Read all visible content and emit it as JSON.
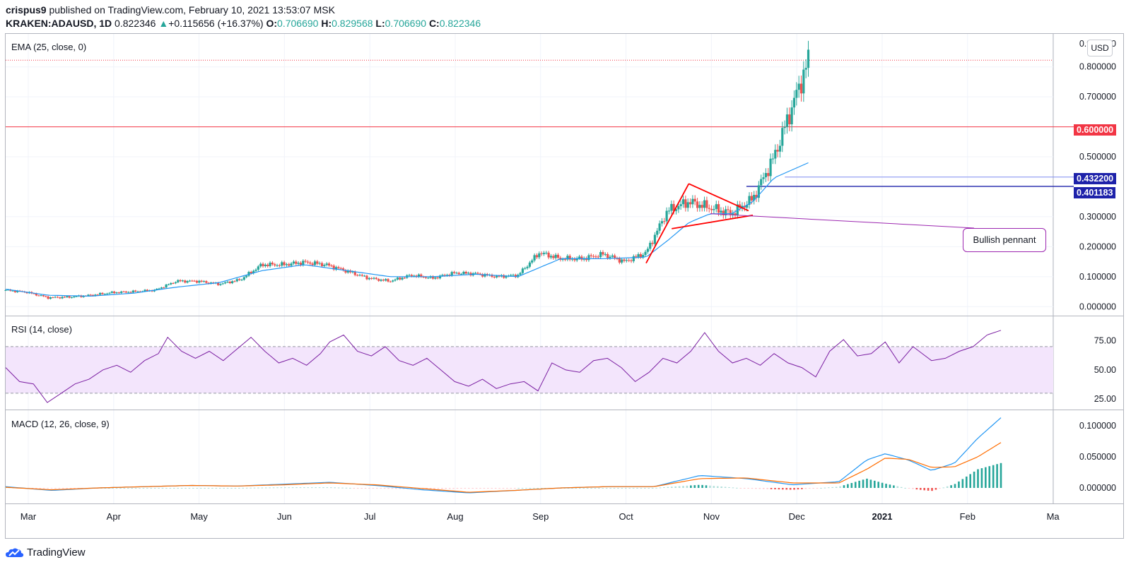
{
  "header": {
    "author": "crispus9",
    "published_text": "published on TradingView.com, February 10, 2021 13:53:07 MSK",
    "symbol": "KRAKEN:ADAUSD",
    "interval": "1D",
    "last": "0.822346",
    "arrow": "▲",
    "change": "+0.115656 (+16.37%)",
    "o_label": "O:",
    "o": "0.706690",
    "h_label": "H:",
    "h": "0.829568",
    "l_label": "L:",
    "l": "0.706690",
    "c_label": "C:",
    "c": "0.822346"
  },
  "currency_button": "USD",
  "annotation": "Bullish pennant",
  "brand": "TradingView",
  "colors": {
    "up": "#26a69a",
    "down": "#ef5350",
    "ema": "#2196f3",
    "rsi": "#7b1fa2",
    "rsi_band": "#f3e5fc",
    "macd": "#2196f3",
    "signal": "#ff6d00",
    "hline_red": "#f23645",
    "hline_blue": "#1e22aa",
    "hline_lightblue": "#7e8cf0"
  },
  "chart_data": [
    {
      "type": "candlestick",
      "title": "EMA (25, close, 0)",
      "x": [
        "Mar",
        "Apr",
        "May",
        "Jun",
        "Jul",
        "Aug",
        "Sep",
        "Oct",
        "Nov",
        "Dec",
        "2021",
        "Feb",
        "Ma"
      ],
      "y_ticks": [
        "0.800000",
        "0.700000",
        "0.500000",
        "0.300000",
        "0.200000",
        "0.100000",
        "0.000000"
      ],
      "y_top_label": "0.900000",
      "ylim": [
        -0.03,
        0.91
      ],
      "price_path": [
        [
          0,
          0.055
        ],
        [
          0.5,
          0.048
        ],
        [
          1,
          0.03
        ],
        [
          1.5,
          0.032
        ],
        [
          2,
          0.038
        ],
        [
          2.5,
          0.047
        ],
        [
          3,
          0.05
        ],
        [
          3.5,
          0.055
        ],
        [
          4,
          0.085
        ],
        [
          4.5,
          0.085
        ],
        [
          5,
          0.075
        ],
        [
          5.5,
          0.09
        ],
        [
          6,
          0.14
        ],
        [
          6.5,
          0.14
        ],
        [
          7,
          0.148
        ],
        [
          7.5,
          0.14
        ],
        [
          8,
          0.118
        ],
        [
          8.5,
          0.095
        ],
        [
          9,
          0.085
        ],
        [
          9.5,
          0.105
        ],
        [
          10,
          0.095
        ],
        [
          10.5,
          0.112
        ],
        [
          11,
          0.11
        ],
        [
          11.5,
          0.1
        ],
        [
          12,
          0.105
        ],
        [
          12.5,
          0.18
        ],
        [
          13,
          0.16
        ],
        [
          13.5,
          0.16
        ],
        [
          14,
          0.175
        ],
        [
          14.5,
          0.15
        ],
        [
          15,
          0.18
        ],
        [
          15.5,
          0.32
        ],
        [
          16,
          0.35
        ],
        [
          16.5,
          0.33
        ],
        [
          17,
          0.31
        ],
        [
          17.5,
          0.36
        ],
        [
          18,
          0.5
        ],
        [
          18.5,
          0.7
        ],
        [
          18.8,
          0.822
        ]
      ],
      "ema_path": [
        [
          0,
          0.058
        ],
        [
          1,
          0.038
        ],
        [
          2,
          0.035
        ],
        [
          3,
          0.045
        ],
        [
          4,
          0.065
        ],
        [
          5,
          0.08
        ],
        [
          6,
          0.12
        ],
        [
          7,
          0.14
        ],
        [
          8,
          0.12
        ],
        [
          9,
          0.1
        ],
        [
          10,
          0.1
        ],
        [
          11,
          0.108
        ],
        [
          12,
          0.1
        ],
        [
          13,
          0.16
        ],
        [
          14,
          0.16
        ],
        [
          15,
          0.165
        ],
        [
          15.5,
          0.22
        ],
        [
          16,
          0.28
        ],
        [
          16.5,
          0.31
        ],
        [
          17,
          0.31
        ],
        [
          17.5,
          0.35
        ],
        [
          18,
          0.43
        ],
        [
          18.8,
          0.48
        ]
      ],
      "horizontal_lines": [
        {
          "label": "0.600000",
          "value": 0.6,
          "color": "#f23645"
        },
        {
          "label": "0.432200",
          "value": 0.4322,
          "color": "#1e22aa"
        },
        {
          "label": "0.401183",
          "value": 0.401183,
          "color": "#1e22aa"
        }
      ],
      "dotted_last_price": 0.822346
    },
    {
      "type": "line",
      "title": "RSI (14, close)",
      "y_ticks": [
        "75.00",
        "50.00",
        "25.00"
      ],
      "ylim": [
        16,
        96
      ],
      "band": [
        30,
        70
      ],
      "points": [
        [
          0,
          52
        ],
        [
          0.3,
          40
        ],
        [
          0.6,
          38
        ],
        [
          0.9,
          22
        ],
        [
          1.2,
          30
        ],
        [
          1.5,
          38
        ],
        [
          1.8,
          42
        ],
        [
          2.1,
          50
        ],
        [
          2.4,
          54
        ],
        [
          2.7,
          48
        ],
        [
          3,
          58
        ],
        [
          3.3,
          64
        ],
        [
          3.5,
          78
        ],
        [
          3.8,
          66
        ],
        [
          4.1,
          60
        ],
        [
          4.4,
          66
        ],
        [
          4.7,
          58
        ],
        [
          5,
          68
        ],
        [
          5.3,
          78
        ],
        [
          5.6,
          66
        ],
        [
          5.9,
          56
        ],
        [
          6.2,
          60
        ],
        [
          6.5,
          54
        ],
        [
          6.8,
          64
        ],
        [
          7,
          74
        ],
        [
          7.3,
          80
        ],
        [
          7.6,
          66
        ],
        [
          7.9,
          62
        ],
        [
          8.2,
          70
        ],
        [
          8.5,
          58
        ],
        [
          8.8,
          54
        ],
        [
          9.1,
          60
        ],
        [
          9.4,
          50
        ],
        [
          9.7,
          40
        ],
        [
          10,
          36
        ],
        [
          10.3,
          42
        ],
        [
          10.6,
          34
        ],
        [
          10.9,
          38
        ],
        [
          11.2,
          40
        ],
        [
          11.5,
          32
        ],
        [
          11.8,
          56
        ],
        [
          12.1,
          50
        ],
        [
          12.4,
          48
        ],
        [
          12.7,
          58
        ],
        [
          13,
          60
        ],
        [
          13.3,
          52
        ],
        [
          13.6,
          40
        ],
        [
          13.9,
          48
        ],
        [
          14.2,
          60
        ],
        [
          14.5,
          56
        ],
        [
          14.8,
          66
        ],
        [
          15.1,
          82
        ],
        [
          15.4,
          66
        ],
        [
          15.7,
          56
        ],
        [
          16,
          60
        ],
        [
          16.3,
          54
        ],
        [
          16.6,
          64
        ],
        [
          16.9,
          56
        ],
        [
          17.2,
          52
        ],
        [
          17.5,
          44
        ],
        [
          17.8,
          66
        ],
        [
          18.1,
          76
        ],
        [
          18.4,
          62
        ],
        [
          18.7,
          64
        ],
        [
          19,
          74
        ],
        [
          19.3,
          56
        ],
        [
          19.6,
          70
        ],
        [
          20,
          58
        ],
        [
          20.3,
          60
        ],
        [
          20.6,
          66
        ],
        [
          20.9,
          70
        ],
        [
          21.2,
          80
        ],
        [
          21.5,
          84
        ]
      ]
    },
    {
      "type": "line",
      "title": "MACD (12, 26, close, 9)",
      "y_ticks": [
        "0.100000",
        "0.050000",
        "0.000000"
      ],
      "ylim": [
        -0.025,
        0.125
      ],
      "macd": [
        [
          0,
          0.002
        ],
        [
          1,
          -0.004
        ],
        [
          2,
          0.0
        ],
        [
          3,
          0.002
        ],
        [
          4,
          0.004
        ],
        [
          5,
          0.003
        ],
        [
          6,
          0.006
        ],
        [
          7,
          0.009
        ],
        [
          8,
          0.004
        ],
        [
          9,
          -0.003
        ],
        [
          10,
          -0.008
        ],
        [
          11,
          -0.004
        ],
        [
          12,
          0.0
        ],
        [
          13,
          0.002
        ],
        [
          14,
          0.002
        ],
        [
          15,
          0.02
        ],
        [
          16,
          0.015
        ],
        [
          17,
          0.005
        ],
        [
          18,
          0.01
        ],
        [
          18.6,
          0.045
        ],
        [
          19,
          0.055
        ],
        [
          19.5,
          0.045
        ],
        [
          20,
          0.028
        ],
        [
          20.5,
          0.04
        ],
        [
          21,
          0.08
        ],
        [
          21.5,
          0.113
        ]
      ],
      "signal": [
        [
          0,
          0.001
        ],
        [
          1,
          -0.003
        ],
        [
          2,
          0.0
        ],
        [
          3,
          0.002
        ],
        [
          4,
          0.004
        ],
        [
          5,
          0.003
        ],
        [
          6,
          0.005
        ],
        [
          7,
          0.008
        ],
        [
          8,
          0.005
        ],
        [
          9,
          -0.001
        ],
        [
          10,
          -0.007
        ],
        [
          11,
          -0.004
        ],
        [
          12,
          0.0
        ],
        [
          13,
          0.002
        ],
        [
          14,
          0.002
        ],
        [
          15,
          0.015
        ],
        [
          16,
          0.016
        ],
        [
          17,
          0.008
        ],
        [
          18,
          0.008
        ],
        [
          18.6,
          0.03
        ],
        [
          19,
          0.048
        ],
        [
          19.5,
          0.046
        ],
        [
          20,
          0.033
        ],
        [
          20.5,
          0.034
        ],
        [
          21,
          0.05
        ],
        [
          21.5,
          0.073
        ]
      ]
    }
  ]
}
